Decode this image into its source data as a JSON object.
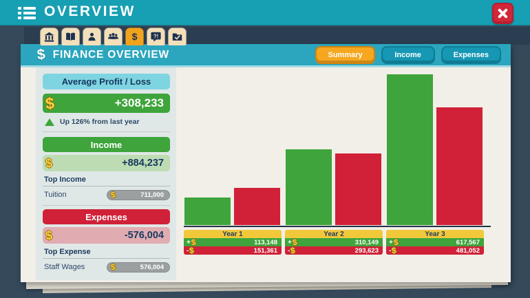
{
  "topbar": {
    "title": "OVERVIEW"
  },
  "icons": {
    "dollar": "$",
    "plus": "+",
    "minus": "-"
  },
  "colors": {
    "teal_bar": "#179fb3",
    "panel_header_teal": "#2ba6be",
    "background_navy": "#35495b",
    "active_orange": "#f6a71f",
    "income_green": "#3ea43b",
    "expense_red": "#d02138",
    "year_yellow": "#f2c83b",
    "dollar_gold": "#ffd23d",
    "profit_cyan": "#7fd4e2"
  },
  "tabs": [
    {
      "name": "campus",
      "icon": "bank-icon",
      "active": false
    },
    {
      "name": "courses",
      "icon": "book-icon",
      "active": false
    },
    {
      "name": "students",
      "icon": "student-icon",
      "active": false
    },
    {
      "name": "staff",
      "icon": "staff-group-icon",
      "active": false
    },
    {
      "name": "finance",
      "icon": "dollar-icon",
      "active": true
    },
    {
      "name": "feedback",
      "icon": "help-bubble-icon",
      "active": false
    },
    {
      "name": "tasks",
      "icon": "folder-check-icon",
      "active": false
    }
  ],
  "panel": {
    "title": "FINANCE OVERVIEW",
    "buttons": [
      {
        "label": "Summary",
        "active": true
      },
      {
        "label": "Income",
        "active": false
      },
      {
        "label": "Expenses",
        "active": false
      }
    ]
  },
  "sidebar": {
    "profit": {
      "header": "Average Profit / Loss",
      "value": "+308,233",
      "trend": "Up 126% from last year"
    },
    "income": {
      "header": "Income",
      "value": "+884,237",
      "top_label": "Top Income",
      "item": "Tuition",
      "item_value": "711,000"
    },
    "expenses": {
      "header": "Expenses",
      "value": "-576,004",
      "top_label": "Top Expense",
      "item": "Staff Wages",
      "item_value": "576,004"
    }
  },
  "chart_data": {
    "type": "bar",
    "title": "Finance Overview - yearly income vs expenses",
    "categories": [
      "Year 1",
      "Year 2",
      "Year 3"
    ],
    "series": [
      {
        "name": "Income",
        "color": "#3ea43b",
        "values": [
          113148,
          310149,
          617567
        ],
        "labels": [
          "113,148",
          "310,149",
          "617,567"
        ]
      },
      {
        "name": "Expenses",
        "color": "#d02138",
        "values": [
          151361,
          293623,
          481052
        ],
        "labels": [
          "151,361",
          "293,623",
          "481,052"
        ]
      }
    ],
    "ylim": [
      0,
      617567
    ],
    "grid": false,
    "legend_position": "below-bars-table"
  }
}
